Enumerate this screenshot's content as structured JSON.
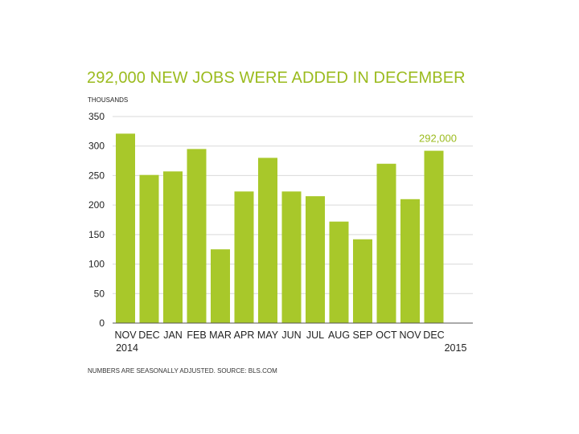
{
  "chart_data": {
    "type": "bar",
    "title": "292,000 NEW JOBS WERE ADDED IN DECEMBER",
    "unit_label": "THOUSANDS",
    "source_note": "NUMBERS ARE SEASONALLY ADJUSTED. SOURCE: BLS.COM",
    "categories": [
      "NOV",
      "DEC",
      "JAN",
      "FEB",
      "MAR",
      "APR",
      "MAY",
      "JUN",
      "JUL",
      "AUG",
      "SEP",
      "OCT",
      "NOV",
      "DEC"
    ],
    "values": [
      321,
      251,
      257,
      295,
      125,
      223,
      280,
      223,
      215,
      172,
      142,
      270,
      210,
      292
    ],
    "year_labels": [
      {
        "text": "2014",
        "category_index": 0
      },
      {
        "text": "2015",
        "category_index": 13
      }
    ],
    "annotation": {
      "text": "292,000",
      "category_index": 13
    },
    "ylim": [
      0,
      350
    ],
    "yticks": [
      0,
      50,
      100,
      150,
      200,
      250,
      300,
      350
    ],
    "grid": true,
    "xlabel": "",
    "ylabel": "",
    "colors": {
      "bar": "#a8c82a",
      "title": "#9bbb1e",
      "grid": "#d9d9d9",
      "axis": "#555555"
    }
  }
}
